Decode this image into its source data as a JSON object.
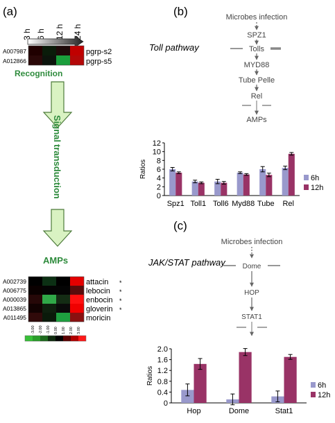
{
  "panel_a": {
    "label": "(a)",
    "time_labels": [
      "3 h",
      "6 h",
      "12 h",
      "24 h"
    ],
    "recognition": {
      "title": "Recognition",
      "rows": [
        {
          "id": "A007987",
          "gene": "pgrp-s2",
          "cells": [
            "#200000",
            "#0a1c0a",
            "#1e0a0a",
            "#c00000"
          ]
        },
        {
          "id": "A012866",
          "gene": "pgrp-s5",
          "cells": [
            "#2a0808",
            "#0c140c",
            "#1a9e3c",
            "#b40808"
          ]
        }
      ]
    },
    "arrow_label_1": "Signal",
    "arrow_label_2": "transduction",
    "amps": {
      "title": "AMPs",
      "rows": [
        {
          "id": "A002739",
          "gene": "attacin",
          "star": "*",
          "cells": [
            "#000000",
            "#0c3014",
            "#000000",
            "#e40000"
          ]
        },
        {
          "id": "A006775",
          "gene": "lebocin",
          "star": "*",
          "cells": [
            "#0a0000",
            "#040404",
            "#040404",
            "#5a0c0c"
          ]
        },
        {
          "id": "A000039",
          "gene": "enbocin",
          "star": "*",
          "cells": [
            "#260808",
            "#30a848",
            "#142c14",
            "#ff1010"
          ]
        },
        {
          "id": "A013865",
          "gene": "gloverin",
          "star": "*",
          "cells": [
            "#120202",
            "#0e200e",
            "#0a0a0a",
            "#f00000"
          ]
        },
        {
          "id": "A011495",
          "gene": "moricin",
          "star": "",
          "cells": [
            "#300a0a",
            "#0a1a0a",
            "#1ea040",
            "#8a1010"
          ]
        }
      ]
    },
    "scale": {
      "labels": [
        "-3.00",
        "-2.00",
        "-1.00",
        "0.00",
        "1.00",
        "2.00",
        "3.00"
      ],
      "colors": [
        "#38c038",
        "#2a9e2a",
        "#1e6a1e",
        "#0e2a0e",
        "#000000",
        "#5a0000",
        "#b00000",
        "#ff1818"
      ]
    }
  },
  "panel_b": {
    "label": "(b)",
    "pathway_title": "Toll pathway",
    "nodes": [
      "Microbes infection",
      "SPZ1",
      "Tolls",
      "MYD88",
      "Tube Pelle",
      "Rel",
      "AMPs"
    ]
  },
  "panel_c": {
    "label": "(c)",
    "pathway_title": "JAK/STAT pathway",
    "nodes": [
      "Microbes infection",
      "Dome",
      "HOP",
      "STAT1"
    ]
  },
  "colors": {
    "series_6h": "#9999cc",
    "series_12h": "#993366",
    "recognition_green": "#2e8b3c",
    "arrow_fill": "#d9f2c2",
    "arrow_stroke": "#4c7a3a"
  },
  "chart_data": [
    {
      "type": "bar",
      "categories": [
        "Spz1",
        "Toll1",
        "Toll6",
        "Myd88",
        "Tube",
        "Rel"
      ],
      "series": [
        {
          "name": "6h",
          "values": [
            6.0,
            3.2,
            3.2,
            5.2,
            6.0,
            6.3
          ],
          "errors": [
            0.4,
            0.3,
            0.5,
            0.2,
            0.6,
            0.4
          ]
        },
        {
          "name": "12h",
          "values": [
            5.2,
            2.9,
            2.9,
            4.8,
            4.7,
            9.5
          ],
          "errors": [
            0.2,
            0.2,
            0.3,
            0.2,
            0.4,
            0.3
          ]
        }
      ],
      "ylabel": "Ratios",
      "ylim": [
        0,
        12
      ],
      "yticks": [
        0,
        2,
        4,
        6,
        8,
        10,
        12
      ],
      "legend": "right"
    },
    {
      "type": "bar",
      "categories": [
        "Hop",
        "Dome",
        "Stat1"
      ],
      "series": [
        {
          "name": "6h",
          "values": [
            0.48,
            0.13,
            0.24
          ],
          "errors": [
            0.22,
            0.2,
            0.2
          ]
        },
        {
          "name": "12h",
          "values": [
            1.44,
            1.88,
            1.7
          ],
          "errors": [
            0.2,
            0.13,
            0.09
          ]
        }
      ],
      "ylabel": "Ratios",
      "ylim": [
        0,
        2.0
      ],
      "yticks": [
        0,
        0.4,
        0.8,
        1.2,
        1.6,
        2.0
      ],
      "tick_labels": [
        "0",
        "0.4",
        "0.8",
        "1.2",
        "1.6",
        "2.0"
      ],
      "legend": "right"
    }
  ]
}
